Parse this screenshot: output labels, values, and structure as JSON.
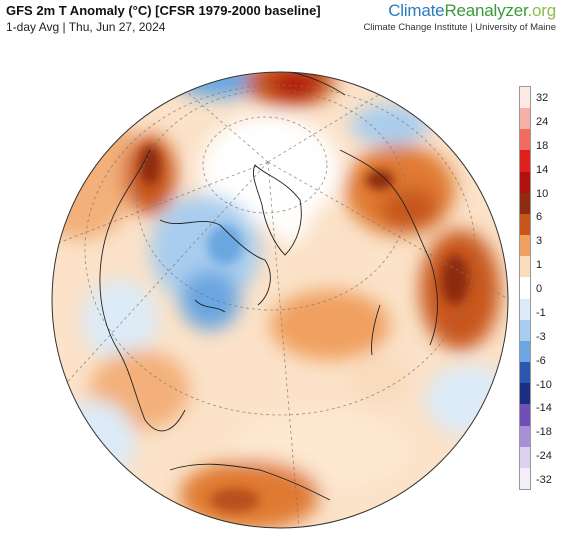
{
  "header": {
    "title": "GFS 2m T Anomaly (°C) [CFSR 1979-2000 baseline]",
    "subtitle": "1-day Avg | Thu, Jun 27, 2024"
  },
  "brand": {
    "part1": "Climate",
    "part2": "Reanalyzer",
    "part3": ".org",
    "affiliation": "Climate Change Institute | University of Maine"
  },
  "map": {
    "projection": "orthographic",
    "region_labels_shown": false
  },
  "colorbar": {
    "labels": [
      "32",
      "24",
      "18",
      "14",
      "10",
      "6",
      "3",
      "1",
      "0",
      "-1",
      "-3",
      "-6",
      "-10",
      "-14",
      "-18",
      "-24",
      "-32"
    ],
    "colors": [
      "#fde8e4",
      "#f7b0a8",
      "#f06c60",
      "#e0201c",
      "#b01010",
      "#8c2c10",
      "#c8561a",
      "#f0a060",
      "#f9dcbc",
      "#ffffff",
      "#dcebf7",
      "#a8cdee",
      "#6aa6e0",
      "#2a58b0",
      "#1c2e84",
      "#7050b8",
      "#a890d8",
      "#ddd0ee",
      "#f4eef8"
    ]
  }
}
